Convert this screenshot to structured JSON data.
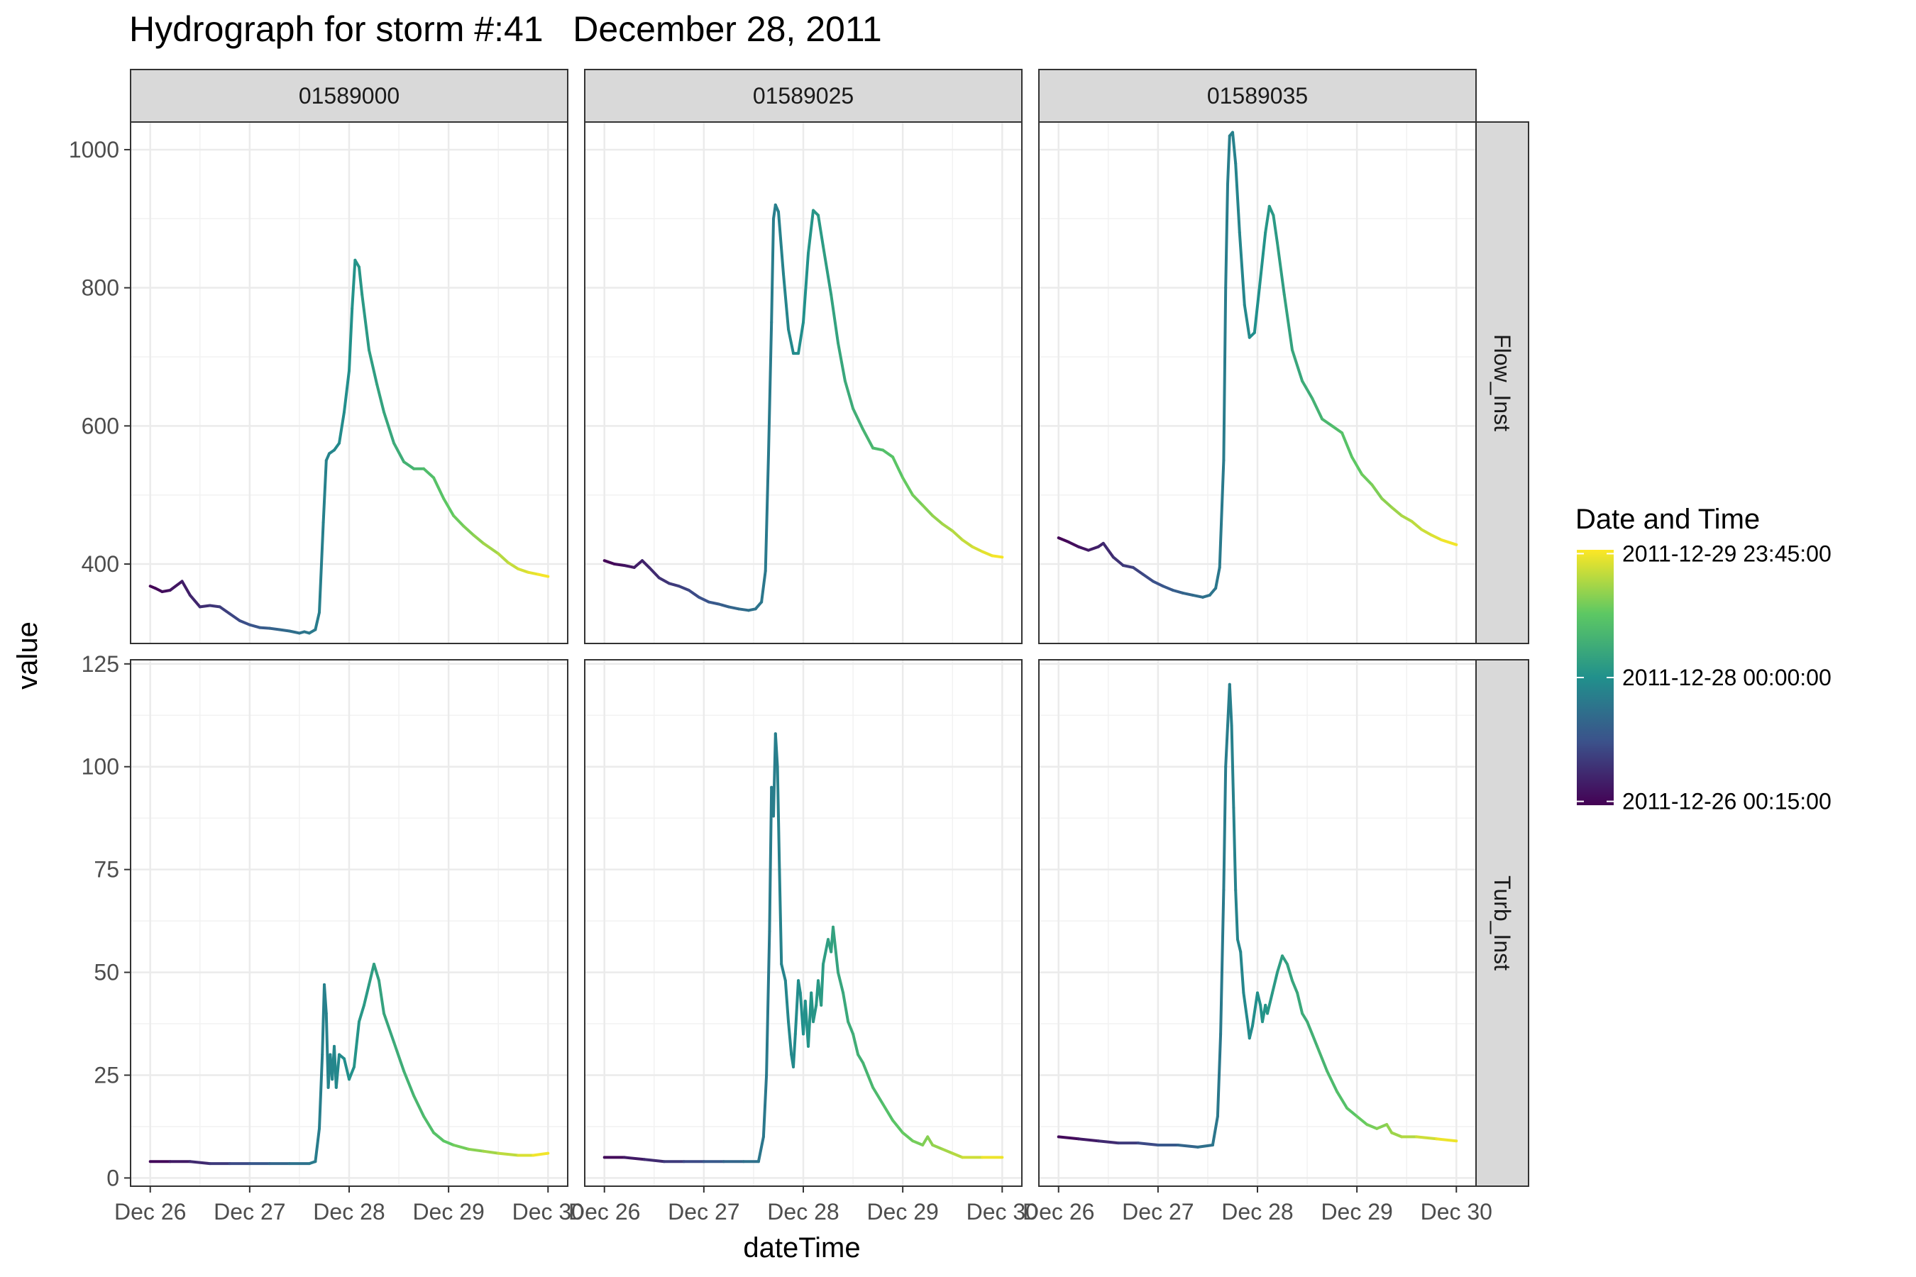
{
  "chart_data": {
    "type": "line",
    "title": "Hydrograph for storm #:41   December 28, 2011",
    "xlabel": "dateTime",
    "ylabel": "value",
    "grid": true,
    "legend_placement": "right",
    "legend": {
      "title": "Date and Time",
      "labels": [
        "2011-12-29 23:45:00",
        "2011-12-28 00:00:00",
        "2011-12-26 00:15:00"
      ],
      "colormap": [
        "#440154",
        "#3b528b",
        "#21908c",
        "#5dc863",
        "#fde725"
      ]
    },
    "columns": [
      "01589000",
      "01589025",
      "01589035"
    ],
    "rows": [
      "Flow_Inst",
      "Turb_Inst"
    ],
    "x_tick_labels": [
      "Dec 26",
      "Dec 27",
      "Dec 28",
      "Dec 29",
      "Dec 30"
    ],
    "x_tick_values": [
      0,
      1,
      2,
      3,
      4
    ],
    "xlim": [
      0,
      4
    ],
    "row_axes": [
      {
        "ylim": [
          285,
          1040
        ],
        "y_ticks": [
          400,
          600,
          800,
          1000
        ],
        "y_tick_labels": [
          "400",
          "600",
          "800",
          "1000"
        ]
      },
      {
        "ylim": [
          -2,
          126
        ],
        "y_ticks": [
          0,
          25,
          50,
          75,
          100,
          125
        ],
        "y_tick_labels": [
          "0",
          "25",
          "50",
          "75",
          "100",
          "125"
        ]
      }
    ],
    "panels": [
      {
        "row": 0,
        "col": 0,
        "series": [
          [
            0,
            368
          ],
          [
            0.05,
            365
          ],
          [
            0.12,
            360
          ],
          [
            0.2,
            362
          ],
          [
            0.32,
            375
          ],
          [
            0.4,
            355
          ],
          [
            0.5,
            338
          ],
          [
            0.6,
            340
          ],
          [
            0.7,
            338
          ],
          [
            0.8,
            328
          ],
          [
            0.9,
            318
          ],
          [
            1.0,
            312
          ],
          [
            1.1,
            308
          ],
          [
            1.2,
            307
          ],
          [
            1.3,
            305
          ],
          [
            1.4,
            303
          ],
          [
            1.5,
            300
          ],
          [
            1.55,
            302
          ],
          [
            1.6,
            300
          ],
          [
            1.66,
            305
          ],
          [
            1.7,
            330
          ],
          [
            1.74,
            460
          ],
          [
            1.77,
            550
          ],
          [
            1.8,
            560
          ],
          [
            1.85,
            565
          ],
          [
            1.9,
            575
          ],
          [
            1.95,
            620
          ],
          [
            2.0,
            680
          ],
          [
            2.03,
            770
          ],
          [
            2.06,
            840
          ],
          [
            2.1,
            830
          ],
          [
            2.13,
            790
          ],
          [
            2.2,
            710
          ],
          [
            2.28,
            660
          ],
          [
            2.35,
            620
          ],
          [
            2.45,
            575
          ],
          [
            2.55,
            548
          ],
          [
            2.65,
            538
          ],
          [
            2.75,
            538
          ],
          [
            2.85,
            525
          ],
          [
            2.95,
            495
          ],
          [
            3.05,
            470
          ],
          [
            3.15,
            455
          ],
          [
            3.25,
            442
          ],
          [
            3.35,
            430
          ],
          [
            3.5,
            415
          ],
          [
            3.6,
            402
          ],
          [
            3.7,
            393
          ],
          [
            3.8,
            388
          ],
          [
            3.9,
            385
          ],
          [
            4.0,
            382
          ]
        ]
      },
      {
        "row": 0,
        "col": 1,
        "series": [
          [
            0,
            405
          ],
          [
            0.1,
            400
          ],
          [
            0.2,
            398
          ],
          [
            0.3,
            395
          ],
          [
            0.38,
            405
          ],
          [
            0.45,
            395
          ],
          [
            0.55,
            380
          ],
          [
            0.65,
            372
          ],
          [
            0.75,
            368
          ],
          [
            0.85,
            362
          ],
          [
            0.95,
            352
          ],
          [
            1.05,
            345
          ],
          [
            1.15,
            342
          ],
          [
            1.25,
            338
          ],
          [
            1.35,
            335
          ],
          [
            1.45,
            333
          ],
          [
            1.52,
            335
          ],
          [
            1.58,
            345
          ],
          [
            1.62,
            390
          ],
          [
            1.65,
            560
          ],
          [
            1.68,
            750
          ],
          [
            1.7,
            900
          ],
          [
            1.72,
            920
          ],
          [
            1.75,
            910
          ],
          [
            1.8,
            820
          ],
          [
            1.85,
            740
          ],
          [
            1.9,
            705
          ],
          [
            1.95,
            705
          ],
          [
            2.0,
            750
          ],
          [
            2.05,
            850
          ],
          [
            2.1,
            912
          ],
          [
            2.15,
            905
          ],
          [
            2.2,
            860
          ],
          [
            2.28,
            790
          ],
          [
            2.35,
            720
          ],
          [
            2.42,
            665
          ],
          [
            2.5,
            625
          ],
          [
            2.6,
            595
          ],
          [
            2.7,
            568
          ],
          [
            2.8,
            565
          ],
          [
            2.9,
            555
          ],
          [
            3.0,
            525
          ],
          [
            3.1,
            500
          ],
          [
            3.2,
            485
          ],
          [
            3.3,
            470
          ],
          [
            3.4,
            458
          ],
          [
            3.5,
            448
          ],
          [
            3.6,
            435
          ],
          [
            3.7,
            425
          ],
          [
            3.8,
            418
          ],
          [
            3.9,
            412
          ],
          [
            4.0,
            410
          ]
        ]
      },
      {
        "row": 0,
        "col": 2,
        "series": [
          [
            0,
            438
          ],
          [
            0.1,
            432
          ],
          [
            0.2,
            425
          ],
          [
            0.3,
            420
          ],
          [
            0.4,
            425
          ],
          [
            0.45,
            430
          ],
          [
            0.55,
            410
          ],
          [
            0.65,
            398
          ],
          [
            0.75,
            395
          ],
          [
            0.85,
            385
          ],
          [
            0.95,
            375
          ],
          [
            1.05,
            368
          ],
          [
            1.15,
            362
          ],
          [
            1.25,
            358
          ],
          [
            1.35,
            355
          ],
          [
            1.45,
            352
          ],
          [
            1.52,
            355
          ],
          [
            1.58,
            365
          ],
          [
            1.62,
            395
          ],
          [
            1.66,
            550
          ],
          [
            1.68,
            800
          ],
          [
            1.7,
            950
          ],
          [
            1.72,
            1020
          ],
          [
            1.75,
            1025
          ],
          [
            1.78,
            980
          ],
          [
            1.82,
            880
          ],
          [
            1.87,
            775
          ],
          [
            1.92,
            728
          ],
          [
            1.97,
            735
          ],
          [
            2.02,
            800
          ],
          [
            2.08,
            880
          ],
          [
            2.12,
            918
          ],
          [
            2.16,
            905
          ],
          [
            2.2,
            865
          ],
          [
            2.27,
            790
          ],
          [
            2.35,
            710
          ],
          [
            2.45,
            665
          ],
          [
            2.55,
            640
          ],
          [
            2.65,
            610
          ],
          [
            2.75,
            600
          ],
          [
            2.85,
            590
          ],
          [
            2.95,
            555
          ],
          [
            3.05,
            530
          ],
          [
            3.15,
            515
          ],
          [
            3.25,
            495
          ],
          [
            3.35,
            482
          ],
          [
            3.45,
            470
          ],
          [
            3.55,
            462
          ],
          [
            3.65,
            450
          ],
          [
            3.75,
            442
          ],
          [
            3.85,
            435
          ],
          [
            4.0,
            428
          ]
        ]
      },
      {
        "row": 1,
        "col": 0,
        "series": [
          [
            0,
            4
          ],
          [
            0.2,
            4
          ],
          [
            0.4,
            4
          ],
          [
            0.6,
            3.5
          ],
          [
            0.8,
            3.5
          ],
          [
            1.0,
            3.5
          ],
          [
            1.2,
            3.5
          ],
          [
            1.4,
            3.5
          ],
          [
            1.6,
            3.5
          ],
          [
            1.66,
            4
          ],
          [
            1.7,
            12
          ],
          [
            1.73,
            30
          ],
          [
            1.75,
            47
          ],
          [
            1.77,
            40
          ],
          [
            1.79,
            22
          ],
          [
            1.81,
            30
          ],
          [
            1.83,
            24
          ],
          [
            1.85,
            32
          ],
          [
            1.87,
            22
          ],
          [
            1.9,
            30
          ],
          [
            1.95,
            29
          ],
          [
            2.0,
            24
          ],
          [
            2.05,
            27
          ],
          [
            2.1,
            38
          ],
          [
            2.15,
            42
          ],
          [
            2.2,
            47
          ],
          [
            2.25,
            52
          ],
          [
            2.3,
            48
          ],
          [
            2.35,
            40
          ],
          [
            2.45,
            33
          ],
          [
            2.55,
            26
          ],
          [
            2.65,
            20
          ],
          [
            2.75,
            15
          ],
          [
            2.85,
            11
          ],
          [
            2.95,
            9
          ],
          [
            3.05,
            8
          ],
          [
            3.2,
            7
          ],
          [
            3.35,
            6.5
          ],
          [
            3.5,
            6
          ],
          [
            3.7,
            5.5
          ],
          [
            3.85,
            5.5
          ],
          [
            4.0,
            6
          ]
        ]
      },
      {
        "row": 1,
        "col": 1,
        "series": [
          [
            0,
            5
          ],
          [
            0.2,
            5
          ],
          [
            0.4,
            4.5
          ],
          [
            0.6,
            4
          ],
          [
            0.8,
            4
          ],
          [
            1.0,
            4
          ],
          [
            1.2,
            4
          ],
          [
            1.4,
            4
          ],
          [
            1.55,
            4
          ],
          [
            1.6,
            10
          ],
          [
            1.63,
            25
          ],
          [
            1.66,
            60
          ],
          [
            1.68,
            95
          ],
          [
            1.7,
            88
          ],
          [
            1.72,
            108
          ],
          [
            1.74,
            100
          ],
          [
            1.76,
            75
          ],
          [
            1.78,
            52
          ],
          [
            1.8,
            50
          ],
          [
            1.82,
            48
          ],
          [
            1.85,
            38
          ],
          [
            1.88,
            30
          ],
          [
            1.9,
            27
          ],
          [
            1.92,
            35
          ],
          [
            1.95,
            48
          ],
          [
            1.97,
            45
          ],
          [
            2.0,
            35
          ],
          [
            2.02,
            43
          ],
          [
            2.05,
            32
          ],
          [
            2.08,
            45
          ],
          [
            2.1,
            38
          ],
          [
            2.13,
            42
          ],
          [
            2.15,
            48
          ],
          [
            2.18,
            42
          ],
          [
            2.2,
            52
          ],
          [
            2.25,
            58
          ],
          [
            2.28,
            55
          ],
          [
            2.3,
            61
          ],
          [
            2.35,
            50
          ],
          [
            2.4,
            45
          ],
          [
            2.45,
            38
          ],
          [
            2.5,
            35
          ],
          [
            2.55,
            30
          ],
          [
            2.6,
            28
          ],
          [
            2.65,
            25
          ],
          [
            2.7,
            22
          ],
          [
            2.8,
            18
          ],
          [
            2.9,
            14
          ],
          [
            3.0,
            11
          ],
          [
            3.1,
            9
          ],
          [
            3.2,
            8
          ],
          [
            3.25,
            10
          ],
          [
            3.3,
            8
          ],
          [
            3.4,
            7
          ],
          [
            3.5,
            6
          ],
          [
            3.6,
            5
          ],
          [
            3.8,
            5
          ],
          [
            4.0,
            5
          ]
        ]
      },
      {
        "row": 1,
        "col": 2,
        "series": [
          [
            0,
            10
          ],
          [
            0.2,
            9.5
          ],
          [
            0.4,
            9
          ],
          [
            0.6,
            8.5
          ],
          [
            0.8,
            8.5
          ],
          [
            1.0,
            8
          ],
          [
            1.2,
            8
          ],
          [
            1.4,
            7.5
          ],
          [
            1.55,
            8
          ],
          [
            1.6,
            15
          ],
          [
            1.63,
            35
          ],
          [
            1.66,
            70
          ],
          [
            1.68,
            100
          ],
          [
            1.7,
            110
          ],
          [
            1.72,
            120
          ],
          [
            1.74,
            110
          ],
          [
            1.76,
            90
          ],
          [
            1.78,
            70
          ],
          [
            1.8,
            58
          ],
          [
            1.83,
            55
          ],
          [
            1.86,
            45
          ],
          [
            1.9,
            38
          ],
          [
            1.92,
            34
          ],
          [
            1.95,
            37
          ],
          [
            2.0,
            45
          ],
          [
            2.03,
            42
          ],
          [
            2.05,
            38
          ],
          [
            2.08,
            42
          ],
          [
            2.1,
            40
          ],
          [
            2.15,
            45
          ],
          [
            2.2,
            50
          ],
          [
            2.25,
            54
          ],
          [
            2.3,
            52
          ],
          [
            2.35,
            48
          ],
          [
            2.4,
            45
          ],
          [
            2.45,
            40
          ],
          [
            2.5,
            38
          ],
          [
            2.55,
            35
          ],
          [
            2.6,
            32
          ],
          [
            2.7,
            26
          ],
          [
            2.8,
            21
          ],
          [
            2.9,
            17
          ],
          [
            3.0,
            15
          ],
          [
            3.1,
            13
          ],
          [
            3.2,
            12
          ],
          [
            3.3,
            13
          ],
          [
            3.35,
            11
          ],
          [
            3.45,
            10
          ],
          [
            3.6,
            10
          ],
          [
            3.8,
            9.5
          ],
          [
            4.0,
            9
          ]
        ]
      }
    ]
  }
}
